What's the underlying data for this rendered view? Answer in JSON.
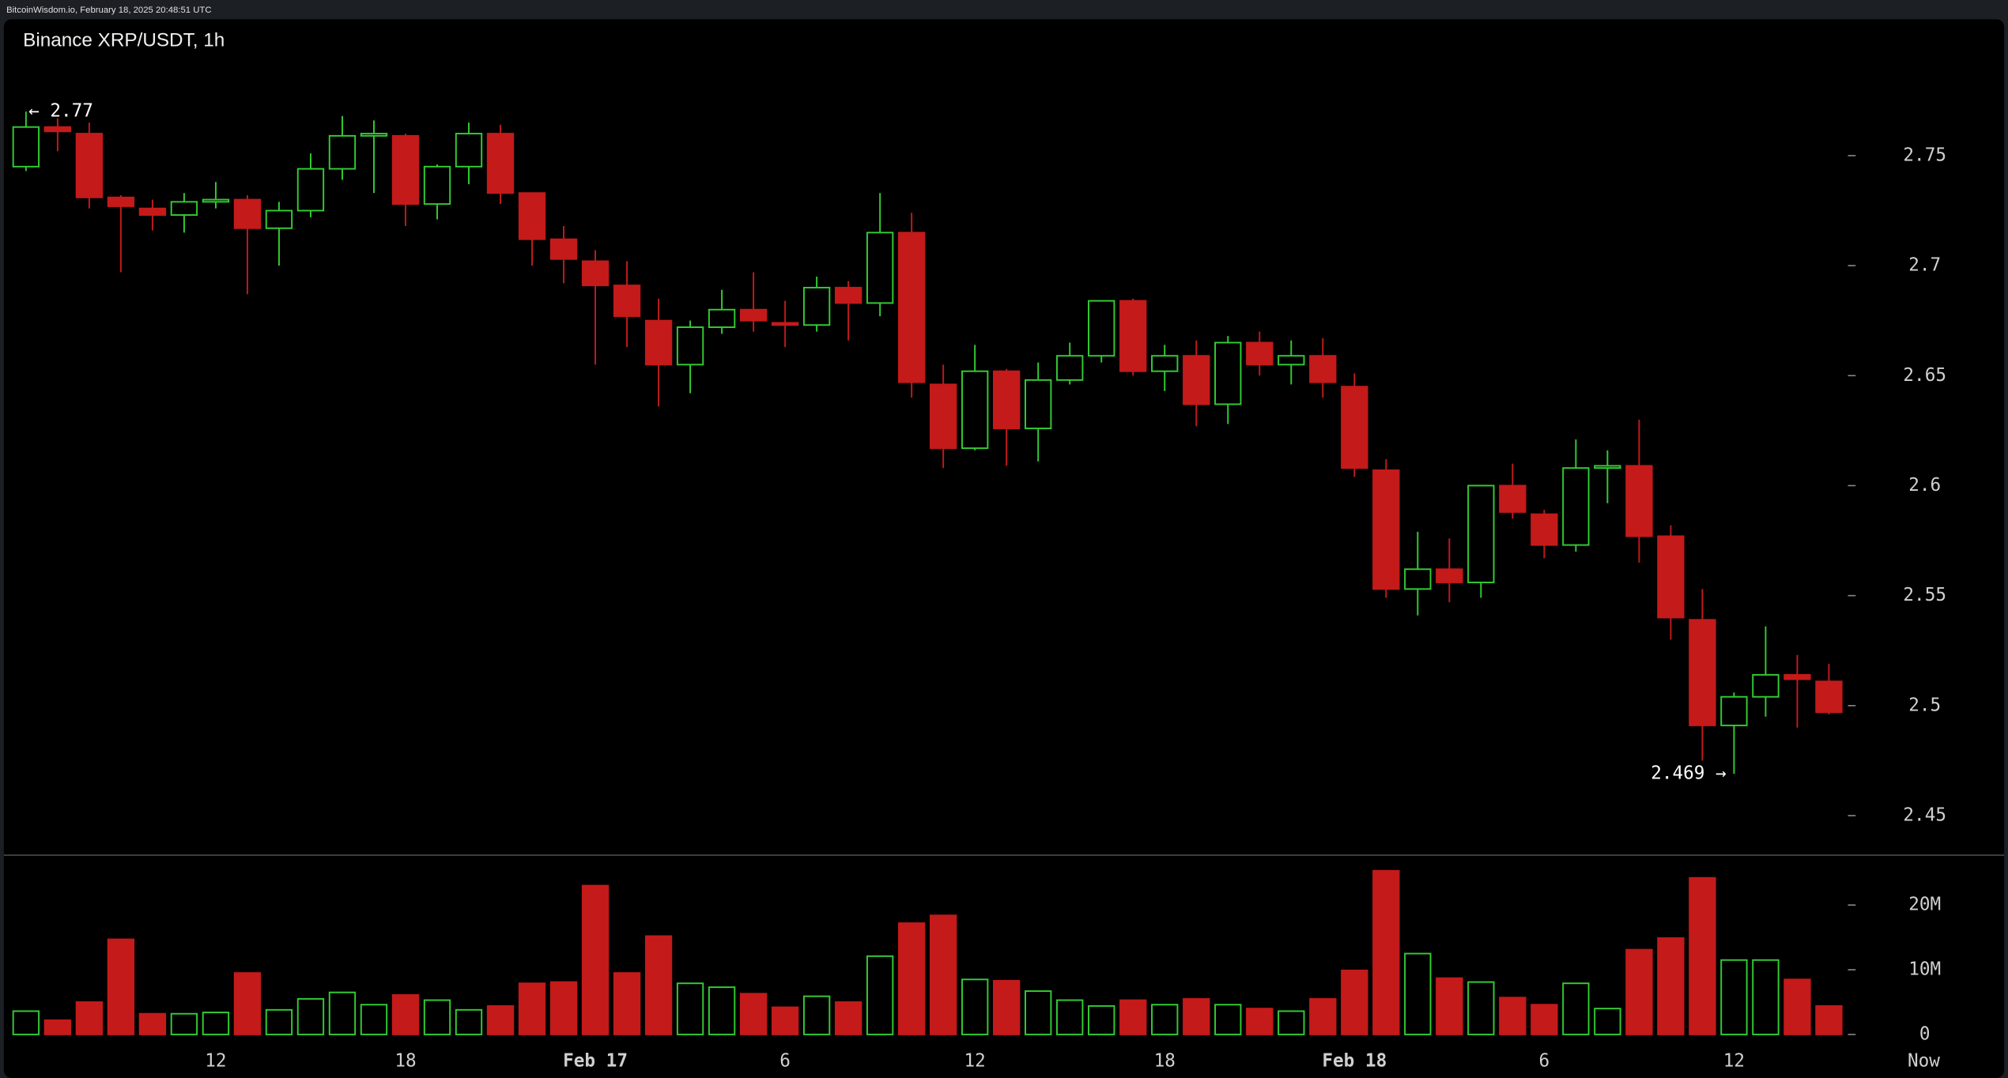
{
  "header": "BitcoinWisdom.io, February 18, 2025 20:48:51 UTC",
  "chart_data": {
    "type": "candlestick",
    "title": "Binance XRP/USDT, 1h",
    "up_color": "#33cc33",
    "down_color": "#c41a1a",
    "open": [
      2.745,
      2.763,
      2.76,
      2.731,
      2.726,
      2.723,
      2.729,
      2.73,
      2.717,
      2.725,
      2.744,
      2.759,
      2.759,
      2.728,
      2.745,
      2.76,
      2.733,
      2.712,
      2.702,
      2.691,
      2.675,
      2.655,
      2.672,
      2.68,
      2.674,
      2.673,
      2.69,
      2.683,
      2.715,
      2.646,
      2.617,
      2.652,
      2.626,
      2.648,
      2.659,
      2.684,
      2.652,
      2.659,
      2.637,
      2.665,
      2.655,
      2.659,
      2.645,
      2.607,
      2.553,
      2.562,
      2.556,
      2.6,
      2.587,
      2.573,
      2.608,
      2.609,
      2.577,
      2.539,
      2.491,
      2.504,
      2.514,
      2.511
    ],
    "high": [
      2.77,
      2.767,
      2.765,
      2.732,
      2.73,
      2.733,
      2.738,
      2.732,
      2.729,
      2.751,
      2.768,
      2.766,
      2.76,
      2.746,
      2.765,
      2.764,
      2.733,
      2.718,
      2.707,
      2.702,
      2.685,
      2.675,
      2.689,
      2.697,
      2.684,
      2.695,
      2.693,
      2.733,
      2.724,
      2.655,
      2.664,
      2.653,
      2.656,
      2.665,
      2.684,
      2.685,
      2.664,
      2.666,
      2.668,
      2.67,
      2.666,
      2.667,
      2.651,
      2.612,
      2.579,
      2.576,
      2.6,
      2.61,
      2.589,
      2.621,
      2.616,
      2.63,
      2.582,
      2.553,
      2.506,
      2.536,
      2.523,
      2.519
    ],
    "low": [
      2.743,
      2.752,
      2.726,
      2.697,
      2.716,
      2.715,
      2.726,
      2.687,
      2.7,
      2.722,
      2.739,
      2.733,
      2.718,
      2.721,
      2.737,
      2.728,
      2.7,
      2.692,
      2.655,
      2.663,
      2.636,
      2.642,
      2.669,
      2.67,
      2.663,
      2.67,
      2.666,
      2.677,
      2.64,
      2.608,
      2.616,
      2.609,
      2.611,
      2.646,
      2.656,
      2.65,
      2.643,
      2.627,
      2.628,
      2.65,
      2.646,
      2.64,
      2.604,
      2.549,
      2.541,
      2.547,
      2.549,
      2.585,
      2.567,
      2.57,
      2.592,
      2.565,
      2.53,
      2.475,
      2.469,
      2.495,
      2.49,
      2.496
    ],
    "close": [
      2.763,
      2.761,
      2.731,
      2.727,
      2.723,
      2.729,
      2.73,
      2.717,
      2.725,
      2.744,
      2.759,
      2.76,
      2.728,
      2.745,
      2.76,
      2.733,
      2.712,
      2.703,
      2.691,
      2.677,
      2.655,
      2.672,
      2.68,
      2.675,
      2.673,
      2.69,
      2.683,
      2.715,
      2.647,
      2.617,
      2.652,
      2.626,
      2.648,
      2.659,
      2.684,
      2.652,
      2.659,
      2.637,
      2.665,
      2.655,
      2.659,
      2.647,
      2.608,
      2.553,
      2.562,
      2.556,
      2.6,
      2.588,
      2.573,
      2.608,
      2.609,
      2.577,
      2.54,
      2.491,
      2.504,
      2.514,
      2.512,
      2.497
    ],
    "volume": [
      3.6,
      2.2,
      5.0,
      14.7,
      3.2,
      3.2,
      3.4,
      9.5,
      3.8,
      5.5,
      6.5,
      4.6,
      6.1,
      5.3,
      3.8,
      4.4,
      7.9,
      8.1,
      23.0,
      9.5,
      15.2,
      7.9,
      7.3,
      6.3,
      4.2,
      5.9,
      5.0,
      12.1,
      17.2,
      18.4,
      8.5,
      8.3,
      6.7,
      5.3,
      4.4,
      5.3,
      4.6,
      5.5,
      4.6,
      4.0,
      3.6,
      5.5,
      9.9,
      25.3,
      12.5,
      8.7,
      8.1,
      5.7,
      4.6,
      7.9,
      4.0,
      13.1,
      14.9,
      24.2,
      11.5,
      11.5,
      8.5,
      4.4
    ],
    "high_label": "← 2.77",
    "low_label": "2.469 →",
    "xlim": [
      -0.7,
      62.5
    ],
    "xticks": [
      {
        "value": 6,
        "label": "12"
      },
      {
        "value": 12,
        "label": "18"
      },
      {
        "value": 18,
        "label": "Feb 17"
      },
      {
        "value": 24,
        "label": "6"
      },
      {
        "value": 30,
        "label": "12"
      },
      {
        "value": 36,
        "label": "18"
      },
      {
        "value": 42,
        "label": "Feb 18"
      },
      {
        "value": 48,
        "label": "6"
      },
      {
        "value": 54,
        "label": "12"
      },
      {
        "value": 60,
        "label": "Now"
      }
    ],
    "ylim": [
      2.432,
      2.812
    ],
    "yticks": [
      2.45,
      2.5,
      2.55,
      2.6,
      2.65,
      2.7,
      2.75
    ],
    "y2lim": [
      0,
      27.7
    ],
    "y2ticks": [
      0,
      {
        "value": 10,
        "label": "10M"
      },
      {
        "value": 20,
        "label": "20M"
      }
    ]
  }
}
